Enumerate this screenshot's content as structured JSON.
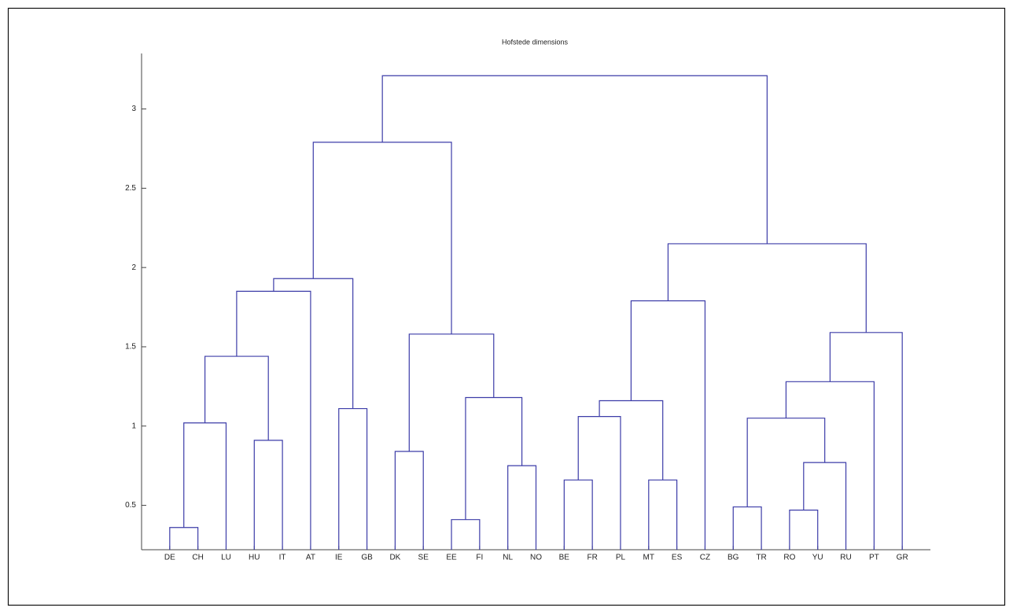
{
  "chart_data": {
    "type": "dendrogram",
    "title": "Hofstede dimensions",
    "color": "#3c3ca8",
    "ylim": [
      0.22,
      3.35
    ],
    "yticks": [
      0.5,
      1,
      1.5,
      2,
      2.5,
      3
    ],
    "tree": {
      "height": 3.21,
      "children": [
        {
          "height": 2.79,
          "children": [
            {
              "height": 1.93,
              "children": [
                {
                  "height": 1.85,
                  "children": [
                    {
                      "height": 1.44,
                      "children": [
                        {
                          "height": 1.02,
                          "children": [
                            {
                              "height": 0.36,
                              "children": [
                                "DE",
                                "CH"
                              ]
                            },
                            "LU"
                          ]
                        },
                        {
                          "height": 0.91,
                          "children": [
                            "HU",
                            "IT"
                          ]
                        }
                      ]
                    },
                    "AT"
                  ]
                },
                {
                  "height": 1.11,
                  "children": [
                    "IE",
                    "GB"
                  ]
                }
              ]
            },
            {
              "height": 1.58,
              "children": [
                {
                  "height": 0.84,
                  "children": [
                    "DK",
                    "SE"
                  ]
                },
                {
                  "height": 1.18,
                  "children": [
                    {
                      "height": 0.41,
                      "children": [
                        "EE",
                        "FI"
                      ]
                    },
                    {
                      "height": 0.75,
                      "children": [
                        "NL",
                        "NO"
                      ]
                    }
                  ]
                }
              ]
            }
          ]
        },
        {
          "height": 2.15,
          "children": [
            {
              "height": 1.79,
              "children": [
                {
                  "height": 1.16,
                  "children": [
                    {
                      "height": 1.06,
                      "children": [
                        {
                          "height": 0.66,
                          "children": [
                            "BE",
                            "FR"
                          ]
                        },
                        "PL"
                      ]
                    },
                    {
                      "height": 0.66,
                      "children": [
                        "MT",
                        "ES"
                      ]
                    }
                  ]
                },
                "CZ"
              ]
            },
            {
              "height": 1.59,
              "children": [
                {
                  "height": 1.28,
                  "children": [
                    {
                      "height": 1.05,
                      "children": [
                        {
                          "height": 0.49,
                          "children": [
                            "BG",
                            "TR"
                          ]
                        },
                        {
                          "height": 0.77,
                          "children": [
                            {
                              "height": 0.47,
                              "children": [
                                "RO",
                                "YU"
                              ]
                            },
                            "RU"
                          ]
                        }
                      ]
                    },
                    "PT"
                  ]
                },
                "GR"
              ]
            }
          ]
        }
      ]
    }
  }
}
